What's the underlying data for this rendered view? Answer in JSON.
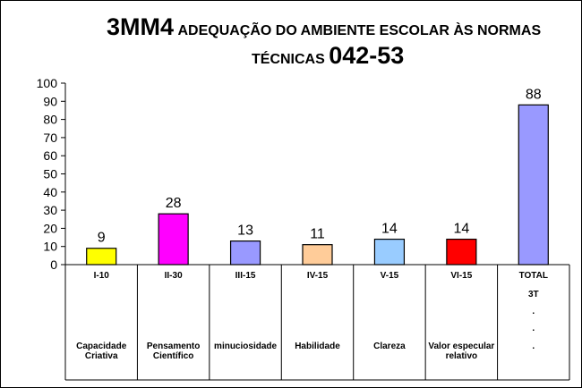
{
  "title": {
    "line1_code": "3MM4",
    "line1_text": "ADEQUAÇÃO DO AMBIENTE ESCOLAR ÀS NORMAS",
    "line2_text": "TÉCNICAS",
    "line2_code": "042-53"
  },
  "chart_data": {
    "type": "bar",
    "categories": [
      "I-10",
      "II-30",
      "III-15",
      "IV-15",
      "V-15",
      "VI-15",
      "TOTAL"
    ],
    "values": [
      9,
      28,
      13,
      11,
      14,
      14,
      88
    ],
    "value_labels": [
      "9",
      "28",
      "13",
      "11",
      "14",
      "14",
      "88"
    ],
    "colors": [
      "#ffff00",
      "#ff00ff",
      "#9999ff",
      "#ffcc99",
      "#99ccff",
      "#ff0000",
      "#9999ff"
    ],
    "descriptions": [
      "Capacidade Criativa",
      "Pensamento Científico",
      "minuciosidade",
      "Habilidade",
      "Clareza",
      "Valor especular relativo",
      "."
    ],
    "total_sub": [
      "3T",
      ".",
      "."
    ],
    "ylim": [
      0,
      100
    ],
    "yticks": [
      "0",
      "10",
      "20",
      "30",
      "40",
      "50",
      "60",
      "70",
      "80",
      "90",
      "100"
    ],
    "grid": false,
    "legend": "none",
    "data_table_below": true
  }
}
